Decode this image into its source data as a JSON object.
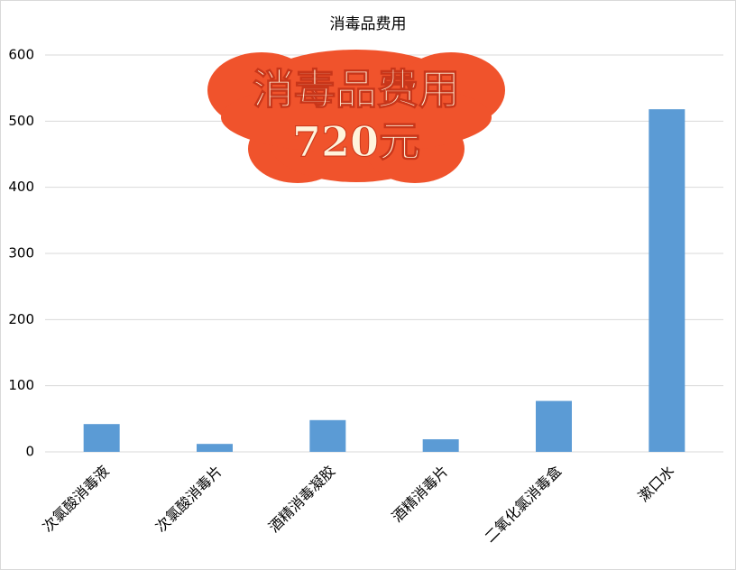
{
  "chart_data": {
    "type": "bar",
    "title": "消毒品费用",
    "annotations": [
      "消毒品费用",
      "720元"
    ],
    "categories": [
      "次氯酸消毒液",
      "次氯酸消毒片",
      "酒精消毒凝胶",
      "酒精消毒片",
      "二氧化氯消毒盒",
      "漱口水"
    ],
    "values": [
      42,
      12,
      48,
      19,
      77,
      518
    ],
    "color": "#5b9bd5",
    "ylim": [
      0,
      600
    ],
    "yticks": [
      0,
      100,
      200,
      300,
      400,
      500,
      600
    ],
    "grid": true
  }
}
